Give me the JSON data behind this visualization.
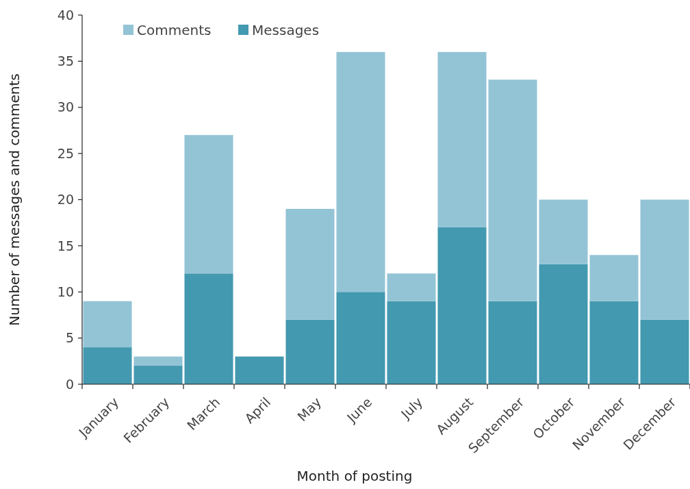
{
  "chart_data": {
    "type": "bar",
    "stacked": true,
    "xlabel": "Month of posting",
    "ylabel": "Number of messages and comments",
    "categories": [
      "January",
      "February",
      "March",
      "April",
      "May",
      "June",
      "July",
      "August",
      "September",
      "October",
      "November",
      "December"
    ],
    "series": [
      {
        "name": "Messages",
        "color": "#4399b0",
        "values": [
          4,
          2,
          12,
          3,
          7,
          10,
          9,
          17,
          9,
          13,
          9,
          7
        ]
      },
      {
        "name": "Comments",
        "color": "#93c4d5",
        "values": [
          5,
          1,
          15,
          0,
          12,
          26,
          3,
          19,
          24,
          7,
          5,
          13
        ]
      }
    ],
    "ylim": [
      0,
      40
    ],
    "yticks": [
      0,
      5,
      10,
      15,
      20,
      25,
      30,
      35,
      40
    ],
    "grid": false,
    "legend": "top left"
  }
}
